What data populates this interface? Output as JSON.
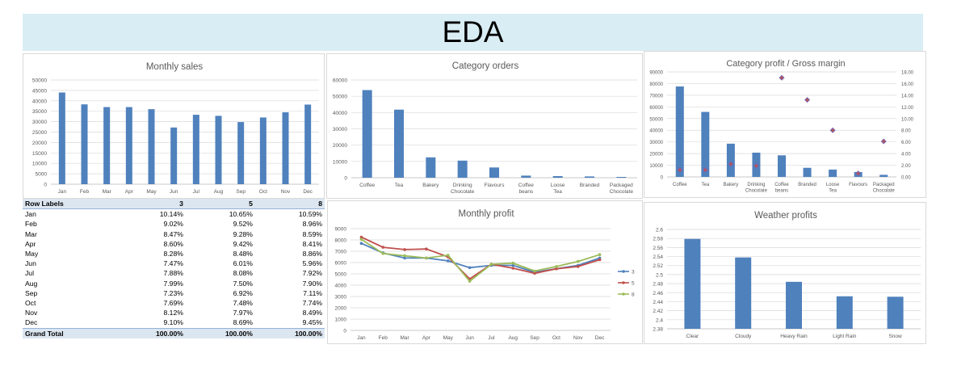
{
  "header": {
    "title": "EDA"
  },
  "pivot": {
    "columns": [
      "Row Labels",
      "3",
      "5",
      "8"
    ],
    "rows": [
      [
        "Jan",
        "10.14%",
        "10.65%",
        "10.59%"
      ],
      [
        "Feb",
        "9.02%",
        "9.52%",
        "8.96%"
      ],
      [
        "Mar",
        "8.47%",
        "9.28%",
        "8.59%"
      ],
      [
        "Apr",
        "8.60%",
        "9.42%",
        "8.41%"
      ],
      [
        "May",
        "8.28%",
        "8.48%",
        "8.86%"
      ],
      [
        "Jun",
        "7.47%",
        "6.01%",
        "5.96%"
      ],
      [
        "Jul",
        "7.88%",
        "8.08%",
        "7.92%"
      ],
      [
        "Aug",
        "7.99%",
        "7.50%",
        "7.90%"
      ],
      [
        "Sep",
        "7.23%",
        "6.92%",
        "7.11%"
      ],
      [
        "Oct",
        "7.69%",
        "7.48%",
        "7.74%"
      ],
      [
        "Nov",
        "8.12%",
        "7.97%",
        "8.49%"
      ],
      [
        "Dec",
        "9.10%",
        "8.69%",
        "9.45%"
      ]
    ],
    "total": [
      "Grand Total",
      "100.00%",
      "100.00%",
      "100.00%"
    ]
  },
  "colors": {
    "bar": "#4f81bd",
    "red": "#c0504d",
    "green": "#9bbb59",
    "marker_purple": "#8064a2",
    "banner": "#d9eef4"
  },
  "chart_data": [
    {
      "id": "monthly-sales",
      "type": "bar",
      "title": "Monthly sales",
      "categories": [
        "Jan",
        "Feb",
        "Mar",
        "Apr",
        "May",
        "Jun",
        "Jul",
        "Aug",
        "Sep",
        "Oct",
        "Nov",
        "Dec"
      ],
      "values": [
        44000,
        38300,
        37000,
        37000,
        36000,
        27200,
        33300,
        32800,
        29800,
        32000,
        34500,
        38200
      ],
      "ylim": [
        0,
        50000
      ],
      "yticks": [
        0,
        5000,
        10000,
        15000,
        20000,
        25000,
        30000,
        35000,
        40000,
        45000,
        50000
      ],
      "grid": true
    },
    {
      "id": "category-orders",
      "type": "bar",
      "title": "Category orders",
      "categories": [
        "Coffee",
        "Tea",
        "Bakery",
        "Drinking Chocolate",
        "Flavours",
        "Coffee beans",
        "Loose Tea",
        "Branded",
        "Packaged Chocolate"
      ],
      "values": [
        53800,
        41800,
        12500,
        10500,
        6300,
        1300,
        1000,
        800,
        500
      ],
      "ylim": [
        0,
        60000
      ],
      "yticks": [
        0,
        10000,
        20000,
        30000,
        40000,
        50000,
        60000
      ],
      "grid": true
    },
    {
      "id": "category-profit",
      "type": "bar",
      "title": "Category profit / Gross margin",
      "categories": [
        "Coffee",
        "Tea",
        "Bakery",
        "Drinking Chocolate",
        "Coffee beans",
        "Branded",
        "Loose Tea",
        "Flavours",
        "Packaged Chocolate"
      ],
      "series": [
        {
          "values": [
            77500,
            55700,
            28500,
            20800,
            18500,
            7800,
            6300,
            4200,
            1800
          ]
        },
        {
          "values": [
            1.2,
            1.2,
            2.2,
            1.9,
            17.0,
            13.2,
            8.0,
            0.6,
            6.1
          ]
        }
      ],
      "ylim": [
        0,
        90000
      ],
      "yticks": [
        0,
        10000,
        20000,
        30000,
        40000,
        50000,
        60000,
        70000,
        80000,
        90000
      ],
      "y2lim": [
        0,
        18
      ],
      "y2ticks": [
        "0.00",
        "2.00",
        "4.00",
        "6.00",
        "8.00",
        "10.00",
        "12.00",
        "14.00",
        "16.00",
        "18.00"
      ],
      "grid": true
    },
    {
      "id": "monthly-profit",
      "type": "line",
      "title": "Monthly profit",
      "categories": [
        "Jan",
        "Feb",
        "Mar",
        "Apr",
        "May",
        "Jun",
        "Jul",
        "Aug",
        "Sep",
        "Oct",
        "Nov",
        "Dec"
      ],
      "series": [
        {
          "name": "3",
          "values": [
            7700,
            6850,
            6400,
            6400,
            6150,
            5550,
            5750,
            5750,
            5150,
            5450,
            5750,
            6400
          ]
        },
        {
          "name": "5",
          "values": [
            8250,
            7350,
            7150,
            7200,
            6500,
            4550,
            5850,
            5500,
            5050,
            5450,
            5650,
            6250
          ]
        },
        {
          "name": "8",
          "values": [
            8050,
            6800,
            6600,
            6400,
            6650,
            4350,
            5850,
            5950,
            5250,
            5650,
            6100,
            6700
          ]
        }
      ],
      "ylim": [
        0,
        9000
      ],
      "yticks": [
        0,
        1000,
        2000,
        3000,
        4000,
        5000,
        6000,
        7000,
        8000,
        9000
      ],
      "legend": "right",
      "grid": true
    },
    {
      "id": "weather-profits",
      "type": "bar",
      "title": "Weather profits",
      "categories": [
        "Clear",
        "Cloudy",
        "Heavy Rain",
        "Light Rain",
        "Snow"
      ],
      "values": [
        2.579,
        2.538,
        2.484,
        2.452,
        2.451
      ],
      "ylim": [
        2.38,
        2.6
      ],
      "yticks": [
        "2.38",
        "2.4",
        "2.42",
        "2.44",
        "2.46",
        "2.48",
        "2.5",
        "2.52",
        "2.54",
        "2.56",
        "2.58",
        "2.6"
      ],
      "grid": true
    }
  ]
}
